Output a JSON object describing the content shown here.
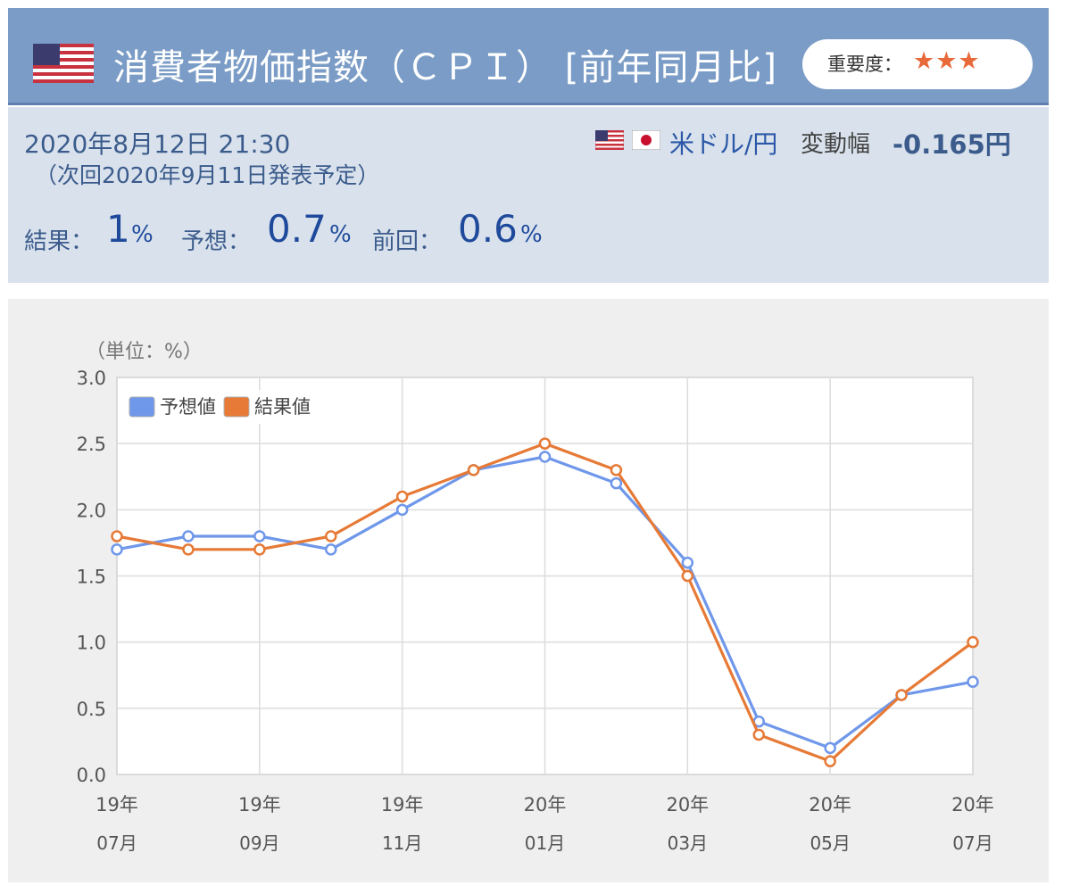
{
  "header": {
    "title": "消費者物価指数（ＣＰＩ） [前年同月比]",
    "importance_label": "重要度：",
    "importance_stars": "★★★",
    "flag_icon": "us-flag-icon",
    "star_color": "#e8693a"
  },
  "info": {
    "date": "2020年8月12日 21:30",
    "next_release": "（次回2020年9月11日発表予定）",
    "pair": "米ドル/円",
    "pair_icons": [
      "us-flag-icon",
      "jp-flag-icon"
    ],
    "volatility_label": "変動幅",
    "volatility_value": "-0.165円",
    "result_label": "結果：",
    "result_value": "1",
    "forecast_label": "予想：",
    "forecast_value": "0.7",
    "previous_label": "前回：",
    "previous_value": "0.6",
    "unit": "%"
  },
  "colors": {
    "header_bg": "#7a9cc6",
    "info_bg": "#d9e2ec",
    "forecast_series": "#6f97ea",
    "result_series": "#e67a36"
  },
  "chart_data": {
    "type": "line",
    "unit_label": "（単位：%）",
    "x": [
      "19年07月",
      "19年08月",
      "19年09月",
      "19年10月",
      "19年11月",
      "19年12月",
      "20年01月",
      "20年02月",
      "20年03月",
      "20年04月",
      "20年05月",
      "20年06月",
      "20年07月"
    ],
    "x_tick_labels": [
      {
        "year": "19年",
        "month": "07月"
      },
      {
        "year": "19年",
        "month": "09月"
      },
      {
        "year": "19年",
        "month": "11月"
      },
      {
        "year": "20年",
        "month": "01月"
      },
      {
        "year": "20年",
        "month": "03月"
      },
      {
        "year": "20年",
        "month": "05月"
      },
      {
        "year": "20年",
        "month": "07月"
      }
    ],
    "y_tick_labels": [
      "3.0",
      "2.5",
      "2.0",
      "1.5",
      "1.0",
      "0.5",
      "0.0"
    ],
    "ylim": [
      0,
      3.0
    ],
    "grid": true,
    "legend_position": "top-left",
    "series": [
      {
        "name": "予想値",
        "values": [
          1.7,
          1.8,
          1.8,
          1.7,
          2.0,
          2.3,
          2.4,
          2.2,
          1.6,
          0.4,
          0.2,
          0.6,
          0.7
        ]
      },
      {
        "name": "結果値",
        "values": [
          1.8,
          1.7,
          1.7,
          1.8,
          2.1,
          2.3,
          2.5,
          2.3,
          1.5,
          0.3,
          0.1,
          0.6,
          1.0
        ]
      }
    ]
  }
}
